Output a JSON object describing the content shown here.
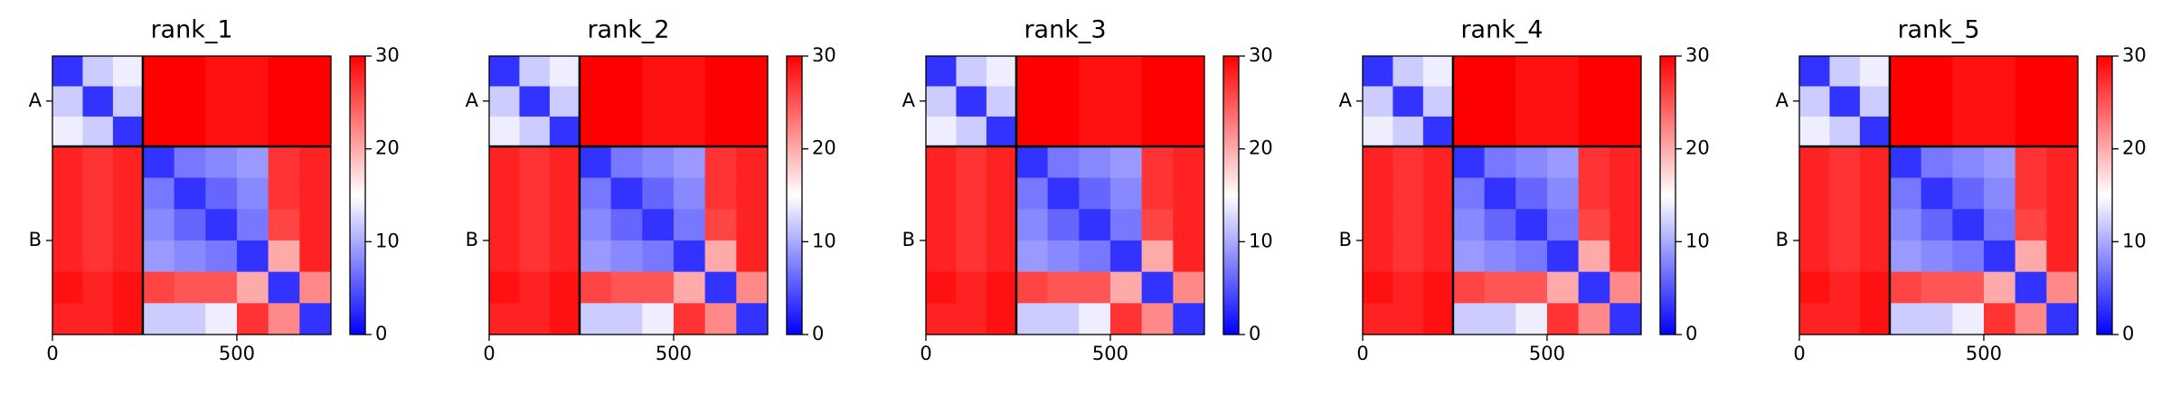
{
  "chart_data": [
    {
      "type": "heatmap",
      "title": "rank_1",
      "colormap": "bwr",
      "clim": [
        0,
        30
      ],
      "cticks": [
        0,
        10,
        20,
        30
      ],
      "x_edges": [
        0,
        82,
        164,
        245,
        330,
        415,
        500,
        585,
        670,
        755
      ],
      "xlim": [
        0,
        755
      ],
      "ylim": [
        755,
        0
      ],
      "xticks": [
        0,
        500
      ],
      "yticks": [
        {
          "value": 122,
          "label": "A"
        },
        {
          "value": 500,
          "label": "B"
        }
      ],
      "chain_boundaries": [
        245
      ],
      "values": [
        [
          3,
          12,
          14,
          30,
          30,
          29,
          29,
          30,
          30
        ],
        [
          12,
          3,
          12,
          30,
          30,
          29,
          29,
          30,
          30
        ],
        [
          14,
          12,
          3,
          30,
          30,
          29,
          29,
          30,
          30
        ],
        [
          28,
          27,
          28,
          3,
          7,
          8,
          9,
          27,
          28
        ],
        [
          28,
          27,
          28,
          7,
          3,
          6,
          8,
          27,
          28
        ],
        [
          28,
          27,
          28,
          8,
          6,
          3,
          7,
          26,
          28
        ],
        [
          28,
          27,
          28,
          9,
          8,
          7,
          3,
          20,
          28
        ],
        [
          29,
          28,
          29,
          26,
          25,
          25,
          20,
          3,
          22
        ],
        [
          28,
          28,
          29,
          12,
          12,
          14,
          27,
          22,
          3
        ]
      ]
    },
    {
      "type": "heatmap",
      "title": "rank_2",
      "colormap": "bwr",
      "clim": [
        0,
        30
      ],
      "cticks": [
        0,
        10,
        20,
        30
      ],
      "x_edges": [
        0,
        82,
        164,
        245,
        330,
        415,
        500,
        585,
        670,
        755
      ],
      "xlim": [
        0,
        755
      ],
      "ylim": [
        755,
        0
      ],
      "xticks": [
        0,
        500
      ],
      "yticks": [
        {
          "value": 122,
          "label": "A"
        },
        {
          "value": 500,
          "label": "B"
        }
      ],
      "chain_boundaries": [
        245
      ],
      "values": [
        [
          3,
          12,
          14,
          30,
          30,
          29,
          29,
          30,
          30
        ],
        [
          12,
          3,
          12,
          30,
          30,
          29,
          29,
          30,
          30
        ],
        [
          14,
          12,
          3,
          30,
          30,
          29,
          29,
          30,
          30
        ],
        [
          28,
          27,
          28,
          3,
          7,
          8,
          9,
          27,
          28
        ],
        [
          28,
          27,
          28,
          7,
          3,
          6,
          8,
          27,
          28
        ],
        [
          28,
          27,
          28,
          8,
          6,
          3,
          7,
          26,
          28
        ],
        [
          28,
          27,
          28,
          9,
          8,
          7,
          3,
          20,
          28
        ],
        [
          29,
          28,
          29,
          26,
          25,
          25,
          20,
          3,
          22
        ],
        [
          28,
          28,
          29,
          12,
          12,
          14,
          27,
          22,
          3
        ]
      ]
    },
    {
      "type": "heatmap",
      "title": "rank_3",
      "colormap": "bwr",
      "clim": [
        0,
        30
      ],
      "cticks": [
        0,
        10,
        20,
        30
      ],
      "x_edges": [
        0,
        82,
        164,
        245,
        330,
        415,
        500,
        585,
        670,
        755
      ],
      "xlim": [
        0,
        755
      ],
      "ylim": [
        755,
        0
      ],
      "xticks": [
        0,
        500
      ],
      "yticks": [
        {
          "value": 122,
          "label": "A"
        },
        {
          "value": 500,
          "label": "B"
        }
      ],
      "chain_boundaries": [
        245
      ],
      "values": [
        [
          3,
          12,
          14,
          30,
          30,
          29,
          29,
          30,
          30
        ],
        [
          12,
          3,
          12,
          30,
          30,
          29,
          29,
          30,
          30
        ],
        [
          14,
          12,
          3,
          30,
          30,
          29,
          29,
          30,
          30
        ],
        [
          28,
          27,
          28,
          3,
          7,
          8,
          9,
          27,
          28
        ],
        [
          28,
          27,
          28,
          7,
          3,
          6,
          8,
          27,
          28
        ],
        [
          28,
          27,
          28,
          8,
          6,
          3,
          7,
          26,
          28
        ],
        [
          28,
          27,
          28,
          9,
          8,
          7,
          3,
          20,
          28
        ],
        [
          29,
          28,
          29,
          26,
          25,
          25,
          20,
          3,
          22
        ],
        [
          28,
          28,
          29,
          12,
          12,
          14,
          27,
          22,
          3
        ]
      ]
    },
    {
      "type": "heatmap",
      "title": "rank_4",
      "colormap": "bwr",
      "clim": [
        0,
        30
      ],
      "cticks": [
        0,
        10,
        20,
        30
      ],
      "x_edges": [
        0,
        82,
        164,
        245,
        330,
        415,
        500,
        585,
        670,
        755
      ],
      "xlim": [
        0,
        755
      ],
      "ylim": [
        755,
        0
      ],
      "xticks": [
        0,
        500
      ],
      "yticks": [
        {
          "value": 122,
          "label": "A"
        },
        {
          "value": 500,
          "label": "B"
        }
      ],
      "chain_boundaries": [
        245
      ],
      "values": [
        [
          3,
          12,
          14,
          30,
          30,
          29,
          29,
          30,
          30
        ],
        [
          12,
          3,
          12,
          30,
          30,
          29,
          29,
          30,
          30
        ],
        [
          14,
          12,
          3,
          30,
          30,
          29,
          29,
          30,
          30
        ],
        [
          28,
          27,
          28,
          3,
          7,
          8,
          9,
          27,
          28
        ],
        [
          28,
          27,
          28,
          7,
          3,
          6,
          8,
          27,
          28
        ],
        [
          28,
          27,
          28,
          8,
          6,
          3,
          7,
          26,
          28
        ],
        [
          28,
          27,
          28,
          9,
          8,
          7,
          3,
          20,
          28
        ],
        [
          29,
          28,
          29,
          26,
          25,
          25,
          20,
          3,
          22
        ],
        [
          28,
          28,
          29,
          12,
          12,
          14,
          27,
          22,
          3
        ]
      ]
    },
    {
      "type": "heatmap",
      "title": "rank_5",
      "colormap": "bwr",
      "clim": [
        0,
        30
      ],
      "cticks": [
        0,
        10,
        20,
        30
      ],
      "x_edges": [
        0,
        82,
        164,
        245,
        330,
        415,
        500,
        585,
        670,
        755
      ],
      "xlim": [
        0,
        755
      ],
      "ylim": [
        755,
        0
      ],
      "xticks": [
        0,
        500
      ],
      "yticks": [
        {
          "value": 122,
          "label": "A"
        },
        {
          "value": 500,
          "label": "B"
        }
      ],
      "chain_boundaries": [
        245
      ],
      "values": [
        [
          3,
          12,
          14,
          30,
          30,
          29,
          29,
          30,
          30
        ],
        [
          12,
          3,
          12,
          30,
          30,
          29,
          29,
          30,
          30
        ],
        [
          14,
          12,
          3,
          30,
          30,
          29,
          29,
          30,
          30
        ],
        [
          28,
          27,
          28,
          3,
          7,
          8,
          9,
          27,
          28
        ],
        [
          28,
          27,
          28,
          7,
          3,
          6,
          8,
          27,
          28
        ],
        [
          28,
          27,
          28,
          8,
          6,
          3,
          7,
          26,
          28
        ],
        [
          28,
          27,
          28,
          9,
          8,
          7,
          3,
          20,
          28
        ],
        [
          29,
          28,
          29,
          26,
          25,
          25,
          20,
          3,
          22
        ],
        [
          28,
          28,
          29,
          12,
          12,
          14,
          27,
          22,
          3
        ]
      ]
    }
  ]
}
